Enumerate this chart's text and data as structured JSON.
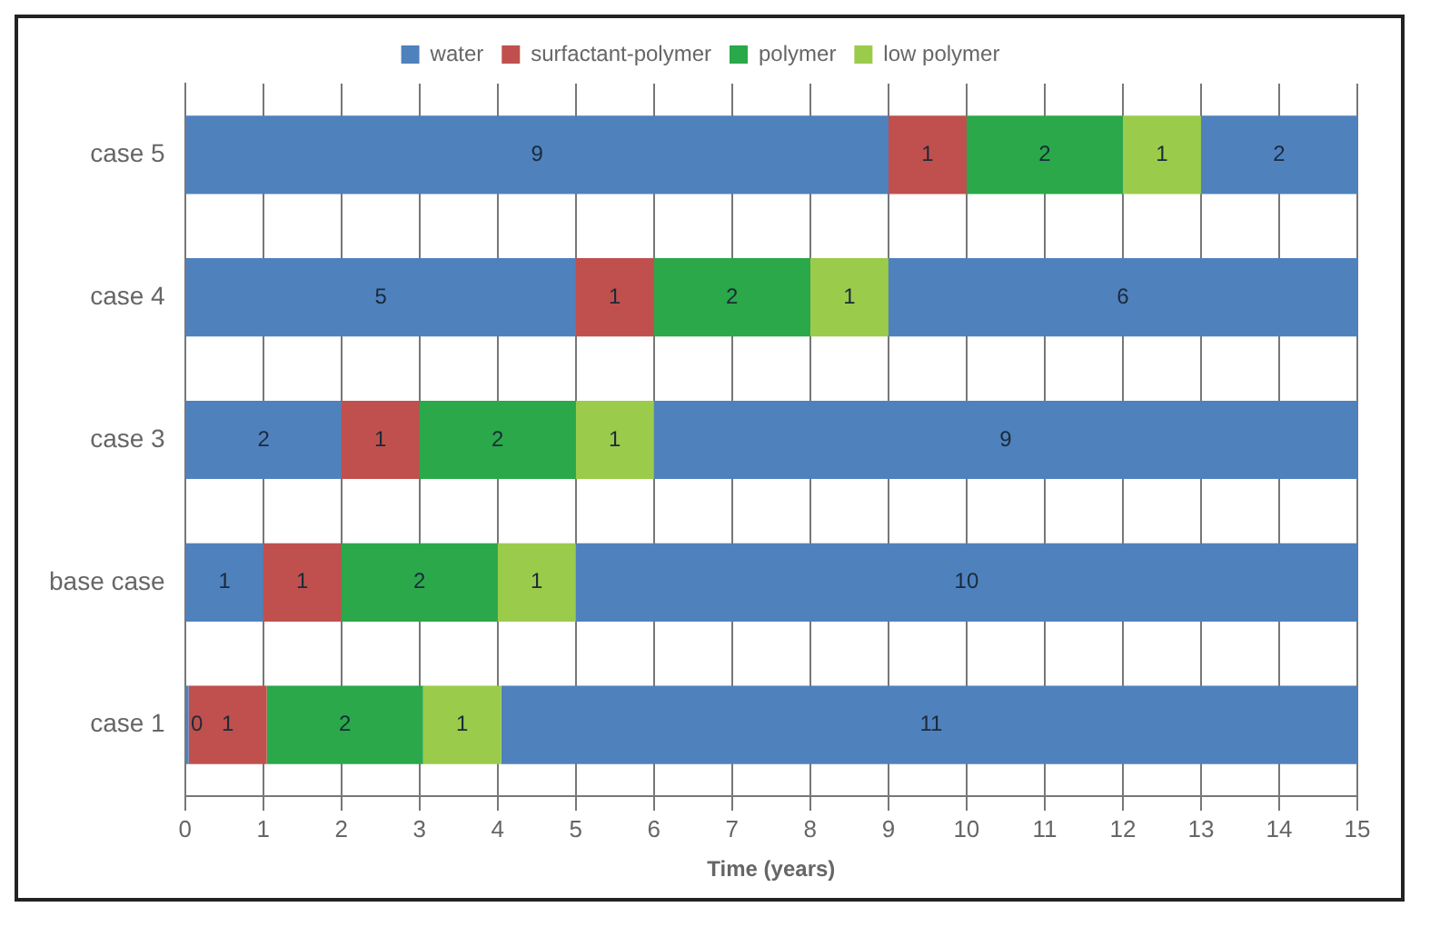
{
  "chart_data": {
    "type": "bar",
    "orientation": "horizontal",
    "stacked": true,
    "xlabel": "Time (years)",
    "categories": [
      "case 5",
      "case 4",
      "case 3",
      "base case",
      "case 1"
    ],
    "series": [
      {
        "name": "water",
        "color": "#4f81bd",
        "values": [
          9,
          5,
          2,
          1,
          0
        ]
      },
      {
        "name": "surfactant-polymer",
        "color": "#c0504d",
        "values": [
          1,
          1,
          1,
          1,
          1
        ]
      },
      {
        "name": "polymer",
        "color": "#2aa84a",
        "values": [
          2,
          2,
          2,
          2,
          2
        ]
      },
      {
        "name": "low polymer",
        "color": "#9bcb4a",
        "values": [
          1,
          1,
          1,
          1,
          1
        ]
      },
      {
        "color": "#4f81bd",
        "values": [
          2,
          6,
          9,
          10,
          11
        ]
      }
    ],
    "xlim": [
      0,
      15
    ],
    "xticks": [
      0,
      1,
      2,
      3,
      4,
      5,
      6,
      7,
      8,
      9,
      10,
      11,
      12,
      13,
      14,
      15
    ],
    "grid": "x",
    "legend": "top",
    "data_labels": true
  }
}
